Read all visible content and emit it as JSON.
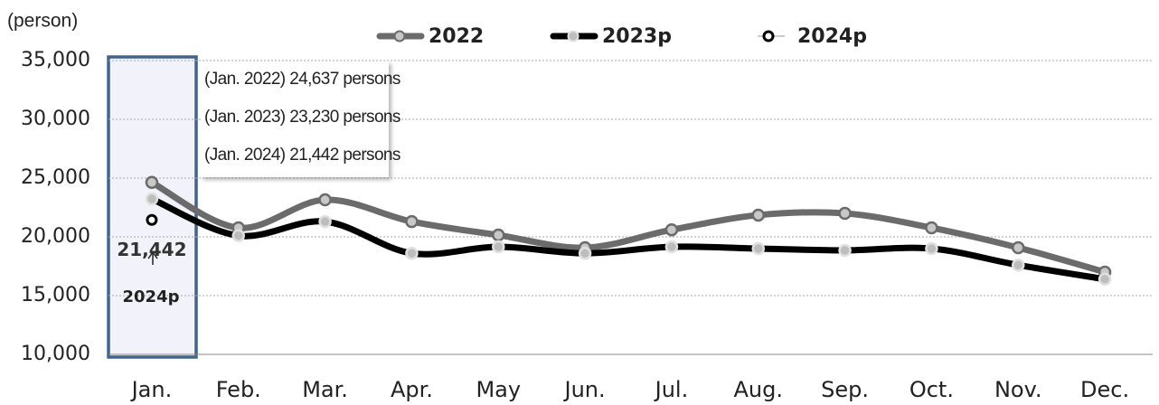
{
  "chart_data": {
    "type": "line",
    "y_label": "(person)",
    "categories": [
      "Jan.",
      "Feb.",
      "Mar.",
      "Apr.",
      "May",
      "Jun.",
      "Jul.",
      "Aug.",
      "Sep.",
      "Oct.",
      "Nov.",
      "Dec."
    ],
    "series": [
      {
        "name": "2022",
        "color": "#6b6b6b",
        "values": [
          24637,
          20770,
          23150,
          21300,
          20150,
          19080,
          20600,
          21850,
          22000,
          20770,
          19080,
          17000
        ]
      },
      {
        "name": "2023p",
        "color": "#000000",
        "values": [
          23230,
          20100,
          21300,
          18600,
          19150,
          18600,
          19150,
          19000,
          18850,
          19000,
          17600,
          16400
        ]
      },
      {
        "name": "2024p",
        "color": "#000000",
        "values": [
          21442,
          null,
          null,
          null,
          null,
          null,
          null,
          null,
          null,
          null,
          null,
          null
        ],
        "value_labels": [
          "21,442",
          null,
          null,
          null,
          null,
          null,
          null,
          null,
          null,
          null,
          null,
          null
        ]
      }
    ],
    "annotations": [
      "(Jan. 2022) 24,637 persons",
      "(Jan. 2023) 23,230 persons",
      "(Jan. 2024) 21,442 persons"
    ],
    "ylim": [
      10000,
      35000
    ],
    "yticks": [
      {
        "value": 10000,
        "label": "10,000"
      },
      {
        "value": 15000,
        "label": "15,000"
      },
      {
        "value": 20000,
        "label": "20,000"
      },
      {
        "value": 25000,
        "label": "25,000"
      },
      {
        "value": 30000,
        "label": "30,000"
      },
      {
        "value": 35000,
        "label": "35,000"
      }
    ],
    "grid": true
  }
}
